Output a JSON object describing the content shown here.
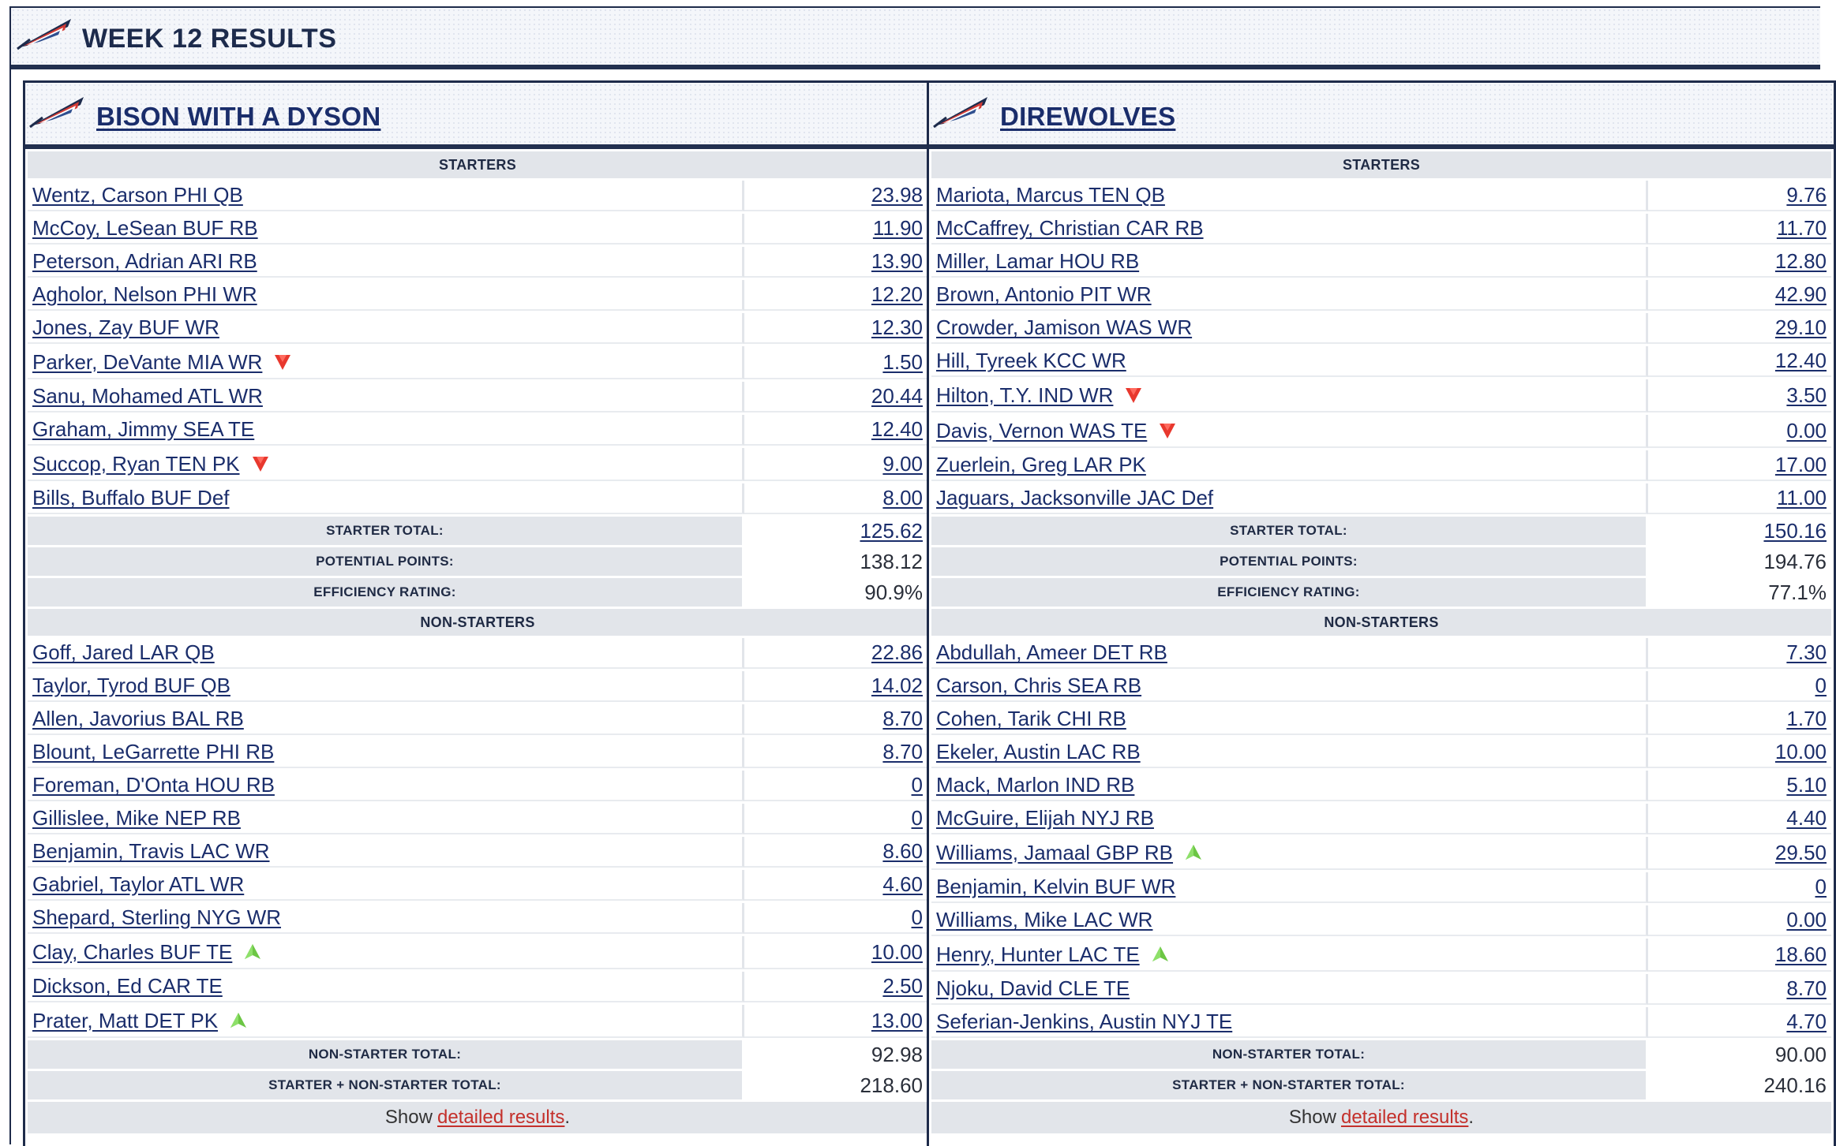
{
  "page": {
    "title": "WEEK 12 RESULTS"
  },
  "colors": {
    "navy": "#1d2b4c",
    "link": "#1a2d6b",
    "up_arrow": "#6cc644",
    "down_arrow": "#e8382e",
    "detail_link": "#c4302b"
  },
  "labels": {
    "starters": "STARTERS",
    "non_starters": "NON-STARTERS",
    "starter_total": "STARTER TOTAL:",
    "potential_points": "POTENTIAL POINTS:",
    "efficiency_rating": "EFFICIENCY RATING:",
    "non_starter_total": "NON-STARTER TOTAL:",
    "grand_total": "STARTER + NON-STARTER TOTAL:",
    "show": "Show",
    "detailed_results": "detailed results",
    "period": "."
  },
  "teams": [
    {
      "name": "BISON WITH A DYSON",
      "starters": [
        {
          "player": "Wentz, Carson PHI QB",
          "points": "23.98",
          "arrow": ""
        },
        {
          "player": "McCoy, LeSean BUF RB",
          "points": "11.90",
          "arrow": ""
        },
        {
          "player": "Peterson, Adrian ARI RB",
          "points": "13.90",
          "arrow": ""
        },
        {
          "player": "Agholor, Nelson PHI WR",
          "points": "12.20",
          "arrow": ""
        },
        {
          "player": "Jones, Zay BUF WR",
          "points": "12.30",
          "arrow": ""
        },
        {
          "player": "Parker, DeVante MIA WR",
          "points": "1.50",
          "arrow": "down"
        },
        {
          "player": "Sanu, Mohamed ATL WR",
          "points": "20.44",
          "arrow": ""
        },
        {
          "player": "Graham, Jimmy SEA TE",
          "points": "12.40",
          "arrow": ""
        },
        {
          "player": "Succop, Ryan TEN PK",
          "points": "9.00",
          "arrow": "down"
        },
        {
          "player": "Bills, Buffalo BUF Def",
          "points": "8.00",
          "arrow": ""
        }
      ],
      "starter_total": "125.62",
      "potential_points": "138.12",
      "efficiency_rating": "90.9%",
      "non_starters": [
        {
          "player": "Goff, Jared LAR QB",
          "points": "22.86",
          "arrow": ""
        },
        {
          "player": "Taylor, Tyrod BUF QB",
          "points": "14.02",
          "arrow": ""
        },
        {
          "player": "Allen, Javorius BAL RB",
          "points": "8.70",
          "arrow": ""
        },
        {
          "player": "Blount, LeGarrette PHI RB",
          "points": "8.70",
          "arrow": ""
        },
        {
          "player": "Foreman, D'Onta HOU RB",
          "points": "0",
          "arrow": ""
        },
        {
          "player": "Gillislee, Mike NEP RB",
          "points": "0",
          "arrow": ""
        },
        {
          "player": "Benjamin, Travis LAC WR",
          "points": "8.60",
          "arrow": ""
        },
        {
          "player": "Gabriel, Taylor ATL WR",
          "points": "4.60",
          "arrow": ""
        },
        {
          "player": "Shepard, Sterling NYG WR",
          "points": "0",
          "arrow": ""
        },
        {
          "player": "Clay, Charles BUF TE",
          "points": "10.00",
          "arrow": "up"
        },
        {
          "player": "Dickson, Ed CAR TE",
          "points": "2.50",
          "arrow": ""
        },
        {
          "player": "Prater, Matt DET PK",
          "points": "13.00",
          "arrow": "up"
        }
      ],
      "non_starter_total": "92.98",
      "grand_total": "218.60"
    },
    {
      "name": "DIREWOLVES",
      "starters": [
        {
          "player": "Mariota, Marcus TEN QB",
          "points": "9.76",
          "arrow": ""
        },
        {
          "player": "McCaffrey, Christian CAR RB",
          "points": "11.70",
          "arrow": ""
        },
        {
          "player": "Miller, Lamar HOU RB",
          "points": "12.80",
          "arrow": ""
        },
        {
          "player": "Brown, Antonio PIT WR",
          "points": "42.90",
          "arrow": ""
        },
        {
          "player": "Crowder, Jamison WAS WR",
          "points": "29.10",
          "arrow": ""
        },
        {
          "player": "Hill, Tyreek KCC WR",
          "points": "12.40",
          "arrow": ""
        },
        {
          "player": "Hilton, T.Y. IND WR",
          "points": "3.50",
          "arrow": "down"
        },
        {
          "player": "Davis, Vernon WAS TE",
          "points": "0.00",
          "arrow": "down"
        },
        {
          "player": "Zuerlein, Greg LAR PK",
          "points": "17.00",
          "arrow": ""
        },
        {
          "player": "Jaguars, Jacksonville JAC Def",
          "points": "11.00",
          "arrow": ""
        }
      ],
      "starter_total": "150.16",
      "potential_points": "194.76",
      "efficiency_rating": "77.1%",
      "non_starters": [
        {
          "player": "Abdullah, Ameer DET RB",
          "points": "7.30",
          "arrow": ""
        },
        {
          "player": "Carson, Chris SEA RB",
          "points": "0",
          "arrow": ""
        },
        {
          "player": "Cohen, Tarik CHI RB",
          "points": "1.70",
          "arrow": ""
        },
        {
          "player": "Ekeler, Austin LAC RB",
          "points": "10.00",
          "arrow": ""
        },
        {
          "player": "Mack, Marlon IND RB",
          "points": "5.10",
          "arrow": ""
        },
        {
          "player": "McGuire, Elijah NYJ RB",
          "points": "4.40",
          "arrow": ""
        },
        {
          "player": "Williams, Jamaal GBP RB",
          "points": "29.50",
          "arrow": "up"
        },
        {
          "player": "Benjamin, Kelvin BUF WR",
          "points": "0",
          "arrow": ""
        },
        {
          "player": "Williams, Mike LAC WR",
          "points": "0.00",
          "arrow": ""
        },
        {
          "player": "Henry, Hunter LAC TE",
          "points": "18.60",
          "arrow": "up"
        },
        {
          "player": "Njoku, David CLE TE",
          "points": "8.70",
          "arrow": ""
        },
        {
          "player": "Seferian-Jenkins, Austin NYJ TE",
          "points": "4.70",
          "arrow": ""
        }
      ],
      "non_starter_total": "90.00",
      "grand_total": "240.16"
    }
  ]
}
